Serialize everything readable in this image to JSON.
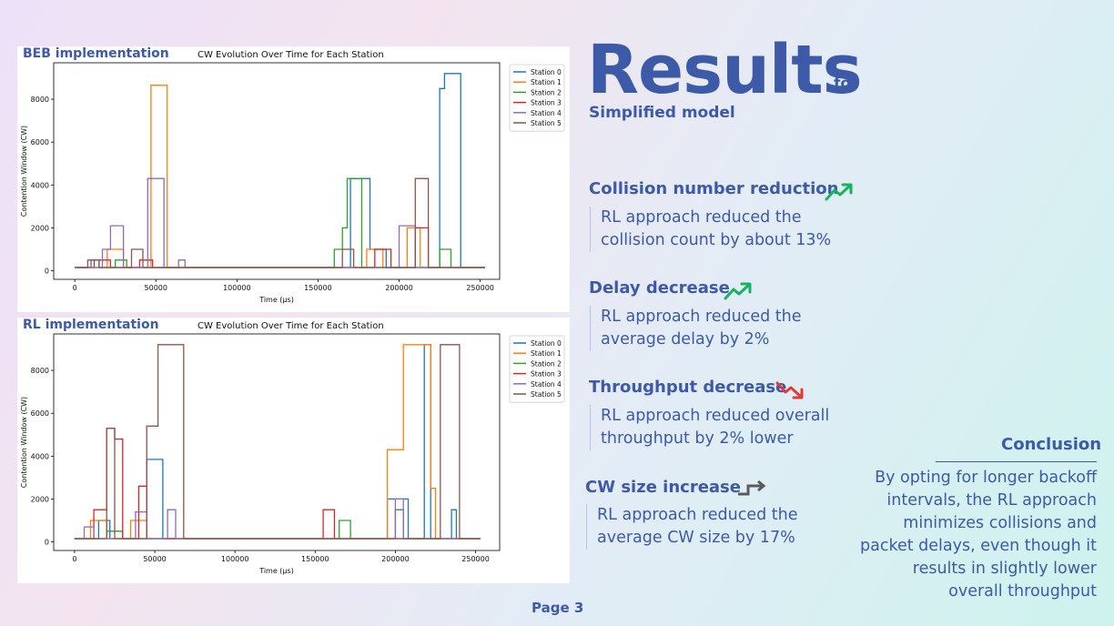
{
  "header": {
    "title": "Results",
    "title_suffix": "for",
    "subtitle": "Simplified model"
  },
  "panels": [
    {
      "label": "BEB implementation"
    },
    {
      "label": "RL implementation"
    }
  ],
  "sections": [
    {
      "heading": "Collision number reduction",
      "icon": "trend-up-icon",
      "icon_color": "#16b35c",
      "body": "RL approach reduced the collision count by about 13%"
    },
    {
      "heading": "Delay decrease",
      "icon": "trend-up-icon",
      "icon_color": "#16b35c",
      "body": "RL approach reduced the average delay by 2%"
    },
    {
      "heading": "Throughput decrease",
      "icon": "trend-down-icon",
      "icon_color": "#e53935",
      "body": "RL approach reduced overall throughput by 2% lower"
    },
    {
      "heading": "CW size increase",
      "icon": "step-arrow-icon",
      "icon_color": "#5a5a5a",
      "body": "RL approach reduced the average CW size by 17%"
    }
  ],
  "conclusion": {
    "heading": "Conclusion",
    "body": "By opting for longer backoff intervals, the RL approach minimizes collisions and packet delays, even though it results in slightly lower overall throughput"
  },
  "footer": {
    "page": "Page 3"
  },
  "chart_data": [
    {
      "type": "line",
      "title": "CW Evolution Over Time for Each Station",
      "xlabel": "Time (µs)",
      "ylabel": "Contention Window (CW)",
      "xlim": [
        -13000,
        262000
      ],
      "ylim": [
        -400,
        9700
      ],
      "xticks": [
        0,
        50000,
        100000,
        150000,
        200000,
        250000
      ],
      "yticks": [
        0,
        2000,
        4000,
        6000,
        8000
      ],
      "legend": "top-right",
      "grid": false,
      "series": [
        {
          "name": "Station 0",
          "color": "#1f77b4",
          "points": [
            [
              0,
              150
            ],
            [
              10000,
              150
            ],
            [
              10000,
              500
            ],
            [
              15000,
              500
            ],
            [
              15000,
              150
            ],
            [
              170000,
              150
            ],
            [
              170000,
              4300
            ],
            [
              182000,
              4300
            ],
            [
              182000,
              1000
            ],
            [
              192000,
              1000
            ],
            [
              192000,
              150
            ],
            [
              225000,
              150
            ],
            [
              225000,
              8500
            ],
            [
              228000,
              8500
            ],
            [
              228000,
              9200
            ],
            [
              238000,
              9200
            ],
            [
              238000,
              150
            ],
            [
              253000,
              150
            ]
          ]
        },
        {
          "name": "Station 1",
          "color": "#ff7f0e",
          "points": [
            [
              0,
              150
            ],
            [
              20000,
              150
            ],
            [
              20000,
              1000
            ],
            [
              30000,
              1000
            ],
            [
              30000,
              150
            ],
            [
              47000,
              150
            ],
            [
              47000,
              8650
            ],
            [
              57000,
              8650
            ],
            [
              57000,
              150
            ],
            [
              180000,
              150
            ],
            [
              180000,
              1000
            ],
            [
              190000,
              1000
            ],
            [
              190000,
              150
            ],
            [
              205000,
              150
            ],
            [
              205000,
              2000
            ],
            [
              213000,
              2000
            ],
            [
              213000,
              150
            ],
            [
              253000,
              150
            ]
          ]
        },
        {
          "name": "Station 2",
          "color": "#2ca02c",
          "points": [
            [
              0,
              150
            ],
            [
              25000,
              150
            ],
            [
              25000,
              500
            ],
            [
              32000,
              500
            ],
            [
              32000,
              150
            ],
            [
              160000,
              150
            ],
            [
              160000,
              1000
            ],
            [
              165000,
              1000
            ],
            [
              165000,
              2000
            ],
            [
              168000,
              2000
            ],
            [
              168000,
              4300
            ],
            [
              177000,
              4300
            ],
            [
              177000,
              150
            ],
            [
              225000,
              150
            ],
            [
              225000,
              1000
            ],
            [
              232000,
              1000
            ],
            [
              232000,
              150
            ],
            [
              253000,
              150
            ]
          ]
        },
        {
          "name": "Station 3",
          "color": "#d62728",
          "points": [
            [
              0,
              150
            ],
            [
              12000,
              150
            ],
            [
              12000,
              500
            ],
            [
              22000,
              500
            ],
            [
              22000,
              150
            ],
            [
              40000,
              150
            ],
            [
              40000,
              500
            ],
            [
              48000,
              500
            ],
            [
              48000,
              150
            ],
            [
              185000,
              150
            ],
            [
              185000,
              1000
            ],
            [
              195000,
              1000
            ],
            [
              195000,
              150
            ],
            [
              210000,
              150
            ],
            [
              210000,
              2000
            ],
            [
              218000,
              2000
            ],
            [
              218000,
              150
            ],
            [
              253000,
              150
            ]
          ]
        },
        {
          "name": "Station 4",
          "color": "#9467bd",
          "points": [
            [
              0,
              150
            ],
            [
              17000,
              150
            ],
            [
              17000,
              1000
            ],
            [
              22000,
              1000
            ],
            [
              22000,
              2100
            ],
            [
              30000,
              2100
            ],
            [
              30000,
              150
            ],
            [
              45000,
              150
            ],
            [
              45000,
              4300
            ],
            [
              55000,
              4300
            ],
            [
              55000,
              150
            ],
            [
              64000,
              150
            ],
            [
              64000,
              500
            ],
            [
              68000,
              500
            ],
            [
              68000,
              150
            ],
            [
              200000,
              150
            ],
            [
              200000,
              2100
            ],
            [
              210000,
              2100
            ],
            [
              210000,
              150
            ],
            [
              253000,
              150
            ]
          ]
        },
        {
          "name": "Station 5",
          "color": "#8c564b",
          "points": [
            [
              0,
              150
            ],
            [
              8000,
              150
            ],
            [
              8000,
              500
            ],
            [
              15000,
              500
            ],
            [
              15000,
              150
            ],
            [
              35000,
              150
            ],
            [
              35000,
              1000
            ],
            [
              42000,
              1000
            ],
            [
              42000,
              150
            ],
            [
              165000,
              150
            ],
            [
              165000,
              1000
            ],
            [
              172000,
              1000
            ],
            [
              172000,
              150
            ],
            [
              210000,
              150
            ],
            [
              210000,
              4300
            ],
            [
              218000,
              4300
            ],
            [
              218000,
              150
            ],
            [
              253000,
              150
            ]
          ]
        }
      ]
    },
    {
      "type": "line",
      "title": "CW Evolution Over Time for Each Station",
      "xlabel": "Time (µs)",
      "ylabel": "Contention Window (CW)",
      "xlim": [
        -13000,
        265000
      ],
      "ylim": [
        -400,
        9700
      ],
      "xticks": [
        0,
        50000,
        100000,
        150000,
        200000,
        250000
      ],
      "yticks": [
        0,
        2000,
        4000,
        6000,
        8000
      ],
      "legend": "top-right",
      "grid": false,
      "series": [
        {
          "name": "Station 0",
          "color": "#1f77b4",
          "points": [
            [
              0,
              150
            ],
            [
              15000,
              150
            ],
            [
              15000,
              1000
            ],
            [
              22000,
              1000
            ],
            [
              22000,
              150
            ],
            [
              45000,
              150
            ],
            [
              45000,
              3850
            ],
            [
              55000,
              3850
            ],
            [
              55000,
              150
            ],
            [
              195000,
              150
            ],
            [
              195000,
              2000
            ],
            [
              208000,
              2000
            ],
            [
              208000,
              150
            ],
            [
              218000,
              150
            ],
            [
              218000,
              9200
            ],
            [
              222000,
              9200
            ],
            [
              222000,
              150
            ],
            [
              235000,
              150
            ],
            [
              235000,
              1500
            ],
            [
              238000,
              1500
            ],
            [
              238000,
              150
            ],
            [
              253000,
              150
            ]
          ]
        },
        {
          "name": "Station 1",
          "color": "#ff7f0e",
          "points": [
            [
              0,
              150
            ],
            [
              10000,
              150
            ],
            [
              10000,
              1000
            ],
            [
              20000,
              1000
            ],
            [
              20000,
              150
            ],
            [
              35000,
              150
            ],
            [
              35000,
              1000
            ],
            [
              45000,
              1000
            ],
            [
              45000,
              150
            ],
            [
              195000,
              150
            ],
            [
              195000,
              4300
            ],
            [
              205000,
              4300
            ],
            [
              205000,
              9200
            ],
            [
              222000,
              9200
            ],
            [
              222000,
              2500
            ],
            [
              225000,
              2500
            ],
            [
              225000,
              150
            ],
            [
              253000,
              150
            ]
          ]
        },
        {
          "name": "Station 2",
          "color": "#2ca02c",
          "points": [
            [
              0,
              150
            ],
            [
              20000,
              150
            ],
            [
              20000,
              500
            ],
            [
              30000,
              500
            ],
            [
              30000,
              150
            ],
            [
              165000,
              150
            ],
            [
              165000,
              1000
            ],
            [
              172000,
              1000
            ],
            [
              172000,
              150
            ],
            [
              200000,
              150
            ],
            [
              200000,
              1500
            ],
            [
              205000,
              1500
            ],
            [
              205000,
              150
            ],
            [
              253000,
              150
            ]
          ]
        },
        {
          "name": "Station 3",
          "color": "#d62728",
          "points": [
            [
              0,
              150
            ],
            [
              12000,
              150
            ],
            [
              12000,
              1500
            ],
            [
              20000,
              1500
            ],
            [
              20000,
              5300
            ],
            [
              25000,
              5300
            ],
            [
              25000,
              4800
            ],
            [
              30000,
              4800
            ],
            [
              30000,
              150
            ],
            [
              40000,
              150
            ],
            [
              40000,
              2600
            ],
            [
              45000,
              2600
            ],
            [
              45000,
              150
            ],
            [
              155000,
              150
            ],
            [
              155000,
              1500
            ],
            [
              162000,
              1500
            ],
            [
              162000,
              150
            ],
            [
              253000,
              150
            ]
          ]
        },
        {
          "name": "Station 4",
          "color": "#9467bd",
          "points": [
            [
              0,
              150
            ],
            [
              6000,
              150
            ],
            [
              6000,
              700
            ],
            [
              12000,
              700
            ],
            [
              12000,
              150
            ],
            [
              38000,
              150
            ],
            [
              38000,
              1400
            ],
            [
              45000,
              1400
            ],
            [
              45000,
              150
            ],
            [
              58000,
              150
            ],
            [
              58000,
              1500
            ],
            [
              63000,
              1500
            ],
            [
              63000,
              150
            ],
            [
              200000,
              150
            ],
            [
              200000,
              2000
            ],
            [
              205000,
              2000
            ],
            [
              205000,
              150
            ],
            [
              253000,
              150
            ]
          ]
        },
        {
          "name": "Station 5",
          "color": "#8c564b",
          "points": [
            [
              0,
              150
            ],
            [
              20000,
              150
            ],
            [
              20000,
              5300
            ],
            [
              25000,
              5300
            ],
            [
              25000,
              150
            ],
            [
              45000,
              150
            ],
            [
              45000,
              5400
            ],
            [
              52000,
              5400
            ],
            [
              52000,
              9200
            ],
            [
              68000,
              9200
            ],
            [
              68000,
              150
            ],
            [
              228000,
              150
            ],
            [
              228000,
              9200
            ],
            [
              240000,
              9200
            ],
            [
              240000,
              150
            ],
            [
              253000,
              150
            ]
          ]
        }
      ]
    }
  ]
}
